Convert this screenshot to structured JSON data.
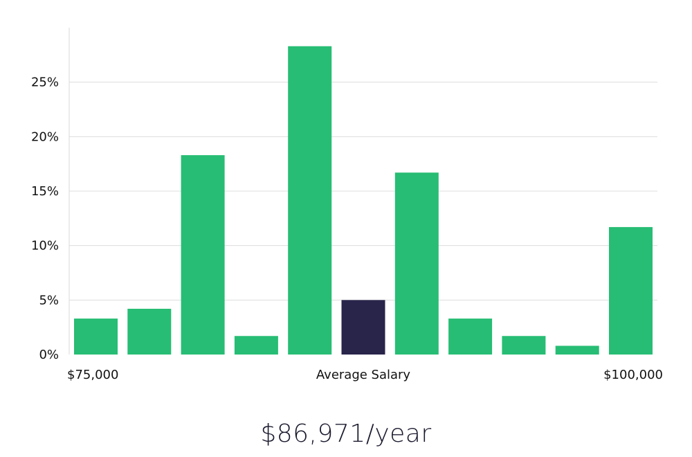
{
  "chart_data": {
    "type": "bar",
    "categories": [
      "",
      "",
      "",
      "",
      "",
      "",
      "",
      "",
      "",
      "",
      ""
    ],
    "values": [
      3.3,
      4.2,
      18.3,
      1.7,
      28.3,
      5.0,
      16.7,
      3.3,
      1.7,
      0.8,
      11.7
    ],
    "highlight_index": 5,
    "ylim": [
      0,
      30
    ],
    "yticks": [
      0,
      5,
      10,
      15,
      20,
      25
    ],
    "ytick_labels": [
      "0%",
      "5%",
      "10%",
      "15%",
      "20%",
      "25%"
    ],
    "grid": true,
    "colors": {
      "bar": "#27bd74",
      "highlight": "#29244a",
      "grid": "#dddddd",
      "axis": "#d9d9d9"
    },
    "x_labels": {
      "left": "$75,000",
      "center": "Average Salary",
      "right": "$100,000"
    }
  },
  "headline": "$86,971/year"
}
